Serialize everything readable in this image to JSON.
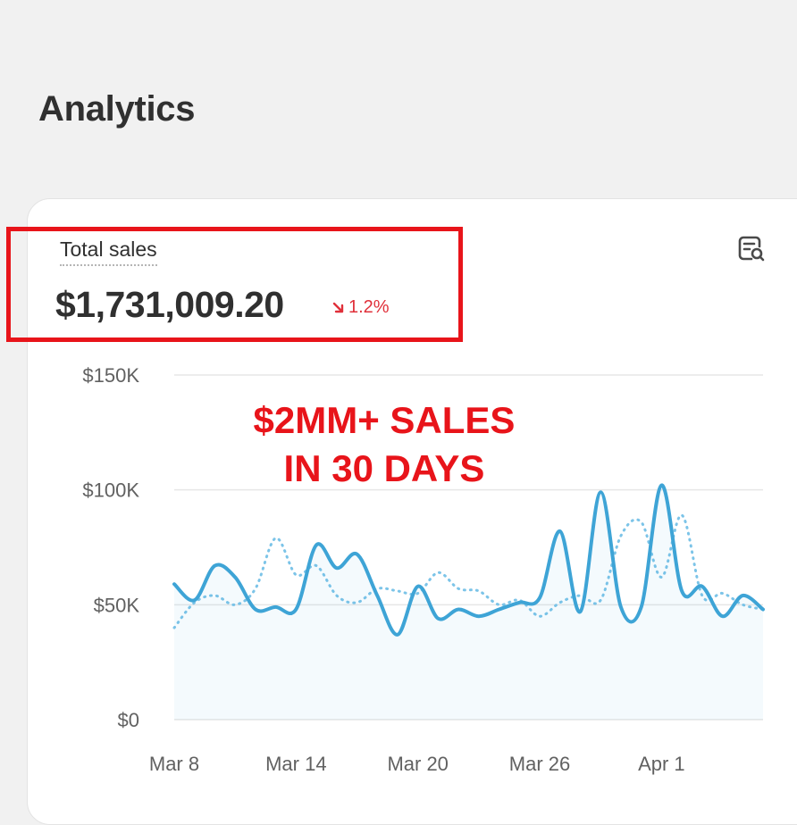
{
  "header": {
    "title": "Analytics"
  },
  "card": {
    "metric_label": "Total sales",
    "metric_value": "$1,731,009.20",
    "metric_change": "1.2%",
    "change_direction": "down",
    "change_color": "#e0303a",
    "highlight_color": "#e8141a",
    "inspect_icon": "inspect-report-icon"
  },
  "annotation": {
    "line1": "$2MM+ SALES",
    "line2": "IN 30 DAYS"
  },
  "chart_data": {
    "type": "line",
    "title": "",
    "xlabel": "",
    "ylabel": "",
    "ylim": [
      0,
      150000
    ],
    "yticks": [
      0,
      50000,
      100000,
      150000
    ],
    "ytick_labels": [
      "$0",
      "$50K",
      "$100K",
      "$150K"
    ],
    "xtick_labels": [
      "Mar 8",
      "Mar 14",
      "Mar 20",
      "Mar 26",
      "Apr 1"
    ],
    "xtick_index": [
      0,
      6,
      12,
      18,
      24
    ],
    "x_count": 30,
    "grid": true,
    "series": [
      {
        "style": "solid",
        "color": "#3ea4d6",
        "values": [
          59000,
          52000,
          67000,
          62000,
          48000,
          49000,
          48000,
          76000,
          66000,
          72000,
          54000,
          37000,
          58000,
          44000,
          48000,
          45000,
          48000,
          51000,
          53000,
          82000,
          47000,
          99000,
          49000,
          49000,
          102000,
          56000,
          58000,
          45000,
          54000,
          48000
        ]
      },
      {
        "style": "dotted",
        "color": "#7cc4e8",
        "values": [
          40000,
          51000,
          54000,
          50000,
          57000,
          79000,
          63000,
          67000,
          54000,
          51000,
          57000,
          56000,
          55000,
          64000,
          57000,
          56000,
          50000,
          52000,
          45000,
          51000,
          54000,
          52000,
          80000,
          86000,
          62000,
          89000,
          54000,
          55000,
          50000,
          48000
        ]
      }
    ]
  }
}
